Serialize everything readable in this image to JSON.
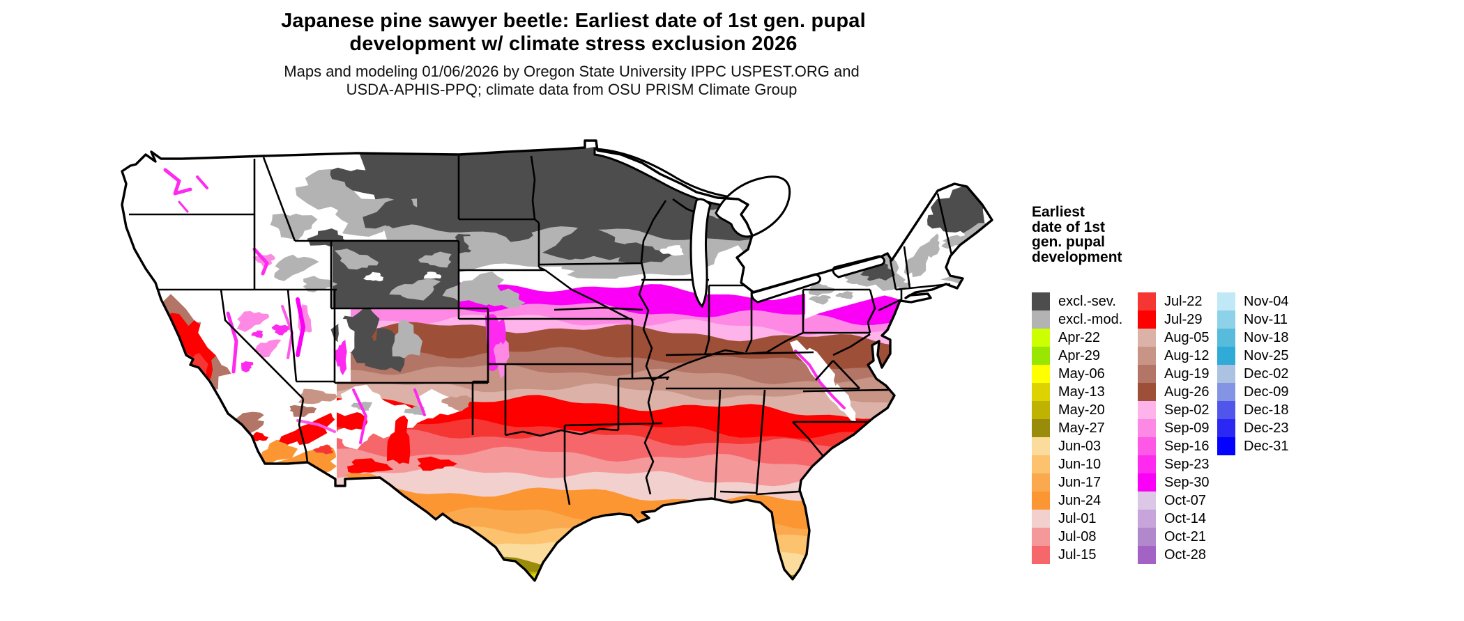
{
  "title": {
    "line1": "Japanese pine sawyer beetle: Earliest date of 1st gen. pupal",
    "line2": "development w/ climate stress exclusion 2026"
  },
  "subtitle": {
    "line1": "Maps and modeling 01/06/2026 by Oregon State University IPPC USPEST.ORG and",
    "line2": "USDA-APHIS-PPQ; climate data from OSU PRISM Climate Group"
  },
  "legend": {
    "title_lines": [
      "Earliest",
      "date of 1st",
      "gen. pupal",
      "development"
    ],
    "column_sizes": [
      15,
      15,
      9
    ]
  },
  "chart_data": {
    "type": "choropleth-map",
    "region": "Contiguous United States",
    "legend_title": "Earliest date of 1st gen. pupal development",
    "categories": [
      "excl.-sev.",
      "excl.-mod.",
      "Apr-22",
      "Apr-29",
      "May-06",
      "May-13",
      "May-20",
      "May-27",
      "Jun-03",
      "Jun-10",
      "Jun-17",
      "Jun-24",
      "Jul-01",
      "Jul-08",
      "Jul-15",
      "Jul-22",
      "Jul-29",
      "Aug-05",
      "Aug-12",
      "Aug-19",
      "Aug-26",
      "Sep-02",
      "Sep-09",
      "Sep-16",
      "Sep-23",
      "Sep-30",
      "Oct-07",
      "Oct-14",
      "Oct-21",
      "Oct-28",
      "Nov-04",
      "Nov-11",
      "Nov-18",
      "Nov-25",
      "Dec-02",
      "Dec-09",
      "Dec-18",
      "Dec-23",
      "Dec-31"
    ],
    "colors": [
      "#4d4d4d",
      "#b3b3b3",
      "#ccff00",
      "#99e600",
      "#ffff00",
      "#dcd300",
      "#c0b200",
      "#998c0a",
      "#fcdc9c",
      "#fcc26e",
      "#fba94e",
      "#fb9632",
      "#f2d0ce",
      "#f4989a",
      "#f6676c",
      "#f53632",
      "#fe0000",
      "#dcb2a8",
      "#c89486",
      "#b27566",
      "#9e4f38",
      "#feb4ea",
      "#fe89e4",
      "#fe58e6",
      "#fe2af0",
      "#fa00f6",
      "#dcc8e6",
      "#c7a4da",
      "#b288cc",
      "#a263c4",
      "#c0e8f6",
      "#8ed2ea",
      "#57bcdc",
      "#30aad6",
      "#abc2e0",
      "#8394e4",
      "#5056ec",
      "#2a28f2",
      "#0402fe"
    ],
    "spatial_pattern": "Earliest dates (Apr-May greens/yellows) in south Florida and south Texas; June oranges along Gulf Coast; July pinks/reds across the southern tier; August browns in mid-latitudes; September magentas across the lower Midwest and Mid-Atlantic; gray climate-stress exclusion zones across the northern tier and Rockies; white no-development areas in the interior West and Northeast"
  }
}
